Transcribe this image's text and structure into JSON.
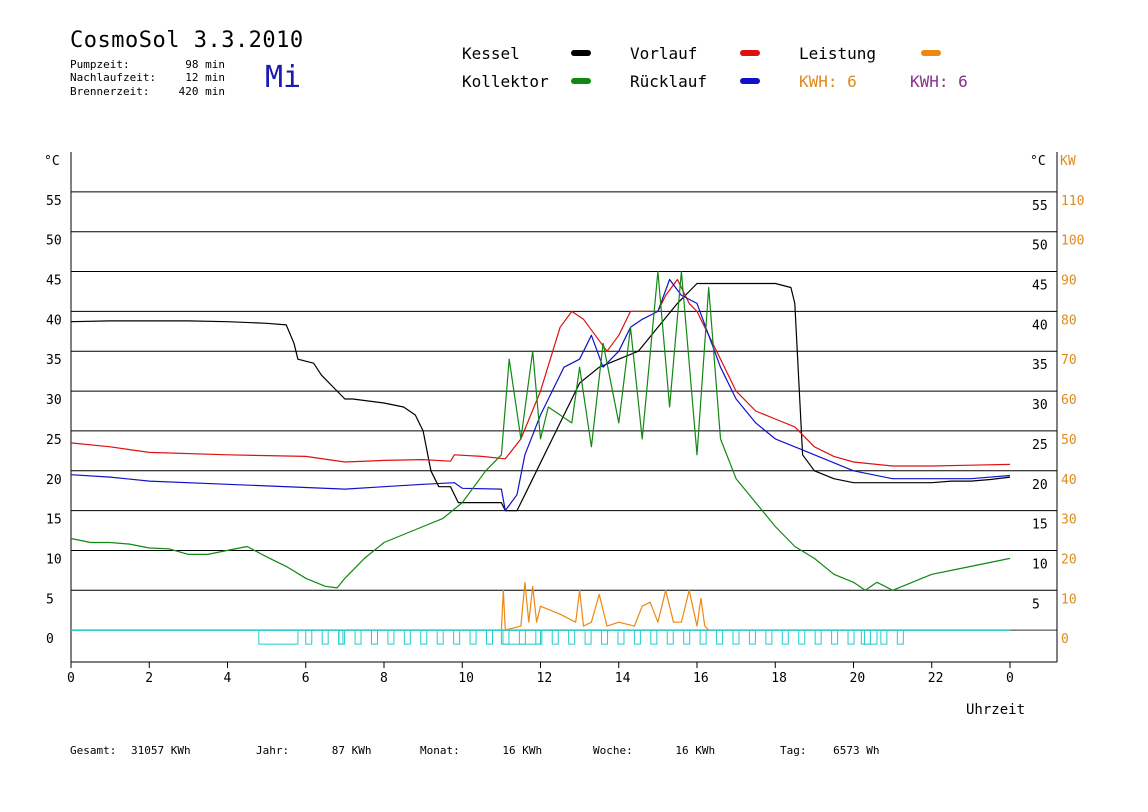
{
  "header": {
    "title": "CosmoSol 3.3.2010",
    "weekday": "Mi",
    "stats": [
      {
        "label": "Pumpzeit:",
        "value": "98 min"
      },
      {
        "label": "Nachlaufzeit:",
        "value": "12 min"
      },
      {
        "label": "Brennerzeit:",
        "value": "420 min"
      }
    ]
  },
  "legend": {
    "items": [
      {
        "label": "Kessel",
        "color": "#000000"
      },
      {
        "label": "Kollektor",
        "color": "#118811"
      },
      {
        "label": "Vorlauf",
        "color": "#dd1111"
      },
      {
        "label": "Rücklauf",
        "color": "#1111cc"
      },
      {
        "label": "Leistung",
        "color": "#ee8811"
      }
    ],
    "kwh_orange": "KWH: 6",
    "kwh_purple": "KWH: 6",
    "kwh_orange_color": "#e08a1e",
    "kwh_purple_color": "#883388"
  },
  "footer": [
    {
      "label": "Gesamt:",
      "value": "31057 KWh"
    },
    {
      "label": "Jahr:",
      "value": "87 KWh"
    },
    {
      "label": "Monat:",
      "value": "16 KWh"
    },
    {
      "label": "Woche:",
      "value": "16 KWh"
    },
    {
      "label": "Tag:",
      "value": "6573 Wh"
    }
  ],
  "chart_data": {
    "type": "line",
    "xlabel": "Uhrzeit",
    "ylabel_left": "°C",
    "ylabel_right_1": "°C",
    "ylabel_right_2": "KW",
    "xlim": [
      0,
      24
    ],
    "ylim": [
      -4,
      60
    ],
    "x_ticks": [
      "0",
      "2",
      "4",
      "6",
      "8",
      "10",
      "12",
      "14",
      "16",
      "18",
      "20",
      "22",
      "0"
    ],
    "y_ticks_left": [
      "0",
      "5",
      "10",
      "15",
      "20",
      "25",
      "30",
      "35",
      "40",
      "45",
      "50",
      "55"
    ],
    "y_ticks_right": [
      "5",
      "10",
      "15",
      "20",
      "25",
      "30",
      "35",
      "40",
      "45",
      "50",
      "55"
    ],
    "y_ticks_kw": [
      "0",
      "10",
      "20",
      "30",
      "40",
      "50",
      "60",
      "70",
      "80",
      "90",
      "100",
      "110"
    ],
    "grid": "horizontal",
    "series": [
      {
        "name": "Kessel",
        "color": "#000000",
        "x": [
          0,
          1,
          2,
          3,
          4,
          5,
          5.5,
          5.7,
          5.8,
          6.2,
          6.4,
          7,
          7.2,
          8,
          8.5,
          8.8,
          9,
          9.2,
          9.4,
          9.7,
          9.9,
          10.2,
          11,
          11.1,
          11.4,
          11.6,
          12,
          12.5,
          13,
          13.5,
          14,
          14.5,
          15,
          15.5,
          16,
          16.2,
          17,
          18,
          18.4,
          18.5,
          18.7,
          19,
          19.5,
          20,
          21,
          22,
          22.5,
          23,
          23.5,
          24
        ],
        "y": [
          38.7,
          38.8,
          38.8,
          38.8,
          38.7,
          38.5,
          38.3,
          36,
          34,
          33.5,
          32,
          29,
          29,
          28.5,
          28,
          27,
          25,
          20,
          18,
          18,
          16,
          16,
          16,
          15,
          15,
          17,
          21,
          26,
          31,
          33,
          34,
          35,
          38,
          41,
          43.5,
          43.5,
          43.5,
          43.5,
          43,
          41,
          22,
          20,
          19,
          18.5,
          18.5,
          18.5,
          18.7,
          18.7,
          18.9,
          19.2
        ]
      },
      {
        "name": "Vorlauf",
        "color": "#dd1111",
        "x": [
          0,
          1,
          2,
          4,
          6,
          7,
          8,
          9,
          9.7,
          9.8,
          10.5,
          11.1,
          11.5,
          12,
          12.5,
          12.8,
          13.1,
          13.4,
          13.7,
          14,
          14.3,
          14.6,
          15,
          15.2,
          15.5,
          15.8,
          16,
          16.2,
          16.5,
          17,
          17.5,
          18,
          18.5,
          19,
          19.5,
          20,
          21,
          22,
          23,
          24
        ],
        "y": [
          23.5,
          23,
          22.3,
          22,
          21.8,
          21.1,
          21.3,
          21.4,
          21.2,
          22,
          21.8,
          21.5,
          24,
          30,
          38,
          40,
          39,
          37,
          35,
          37,
          40,
          40,
          40,
          42,
          44,
          41,
          40,
          38,
          35,
          30,
          27.5,
          26.5,
          25.5,
          23,
          21.8,
          21.1,
          20.6,
          20.6,
          20.7,
          20.8
        ]
      },
      {
        "name": "Rücklauf",
        "color": "#1111cc",
        "x": [
          0,
          1,
          2,
          4,
          6,
          7,
          8,
          9,
          9.8,
          10,
          11,
          11.1,
          11.4,
          11.6,
          12,
          12.3,
          12.6,
          13,
          13.3,
          13.6,
          14,
          14.3,
          14.6,
          15,
          15.3,
          15.6,
          16,
          16.3,
          16.6,
          17,
          17.5,
          18,
          18.5,
          19,
          19.5,
          20,
          21,
          22,
          23,
          24
        ],
        "y": [
          19.5,
          19.2,
          18.7,
          18.3,
          17.9,
          17.7,
          18,
          18.3,
          18.5,
          17.8,
          17.7,
          15,
          17,
          22,
          27,
          30,
          33,
          34,
          37,
          33,
          35,
          38,
          39,
          40,
          44,
          42,
          41,
          37,
          33,
          29,
          26,
          24,
          23,
          22,
          21,
          20,
          19,
          19,
          19,
          19.4
        ]
      },
      {
        "name": "Kollektor",
        "color": "#118811",
        "x": [
          0,
          0.5,
          1,
          1.5,
          2,
          2.5,
          3,
          3.5,
          4,
          4.5,
          5,
          5.5,
          6,
          6.5,
          6.8,
          7,
          7.5,
          8,
          8.5,
          9,
          9.5,
          10,
          10.3,
          10.6,
          11,
          11.2,
          11.5,
          11.8,
          12,
          12.2,
          12.5,
          12.8,
          13,
          13.3,
          13.6,
          14,
          14.3,
          14.6,
          15,
          15.3,
          15.6,
          16,
          16.3,
          16.6,
          17,
          17.5,
          18,
          18.5,
          19,
          19.5,
          20,
          20.3,
          20.6,
          21,
          21.5,
          22,
          22.5,
          23,
          23.5,
          24
        ],
        "y": [
          11.5,
          11,
          11,
          10.8,
          10.3,
          10.2,
          9.5,
          9.5,
          10,
          10.5,
          9.2,
          8,
          6.5,
          5.5,
          5.3,
          6.5,
          9,
          11,
          12,
          13,
          14,
          16,
          18,
          20,
          22,
          34,
          24,
          35,
          24,
          28,
          27,
          26,
          33,
          23,
          36,
          26,
          38,
          24,
          45,
          28,
          45,
          22,
          43,
          24,
          19,
          16,
          13,
          10.5,
          9,
          7,
          6,
          5,
          6,
          5,
          6,
          7,
          7.5,
          8,
          8.5,
          9
        ]
      },
      {
        "name": "Leistung",
        "color": "#ee8811",
        "x": [
          11,
          11.05,
          11.1,
          11.5,
          11.6,
          11.7,
          11.8,
          11.9,
          12,
          12.5,
          12.9,
          13,
          13.1,
          13.3,
          13.5,
          13.7,
          14,
          14.4,
          14.6,
          14.8,
          15,
          15.2,
          15.4,
          15.6,
          15.8,
          16,
          16.1,
          16.2,
          16.3
        ],
        "y": [
          0,
          5,
          0,
          0.5,
          6,
          1,
          5.5,
          1,
          3,
          2,
          1,
          5,
          0.5,
          1,
          4.5,
          0.5,
          1,
          0.5,
          3,
          3.5,
          1,
          5,
          1,
          1,
          5,
          0.5,
          4,
          0.5,
          0
        ]
      }
    ],
    "pump_segments": [
      [
        4.8,
        5.8
      ],
      [
        6.85,
        6.95
      ],
      [
        11,
        12
      ],
      [
        20.2,
        20.6
      ]
    ]
  }
}
